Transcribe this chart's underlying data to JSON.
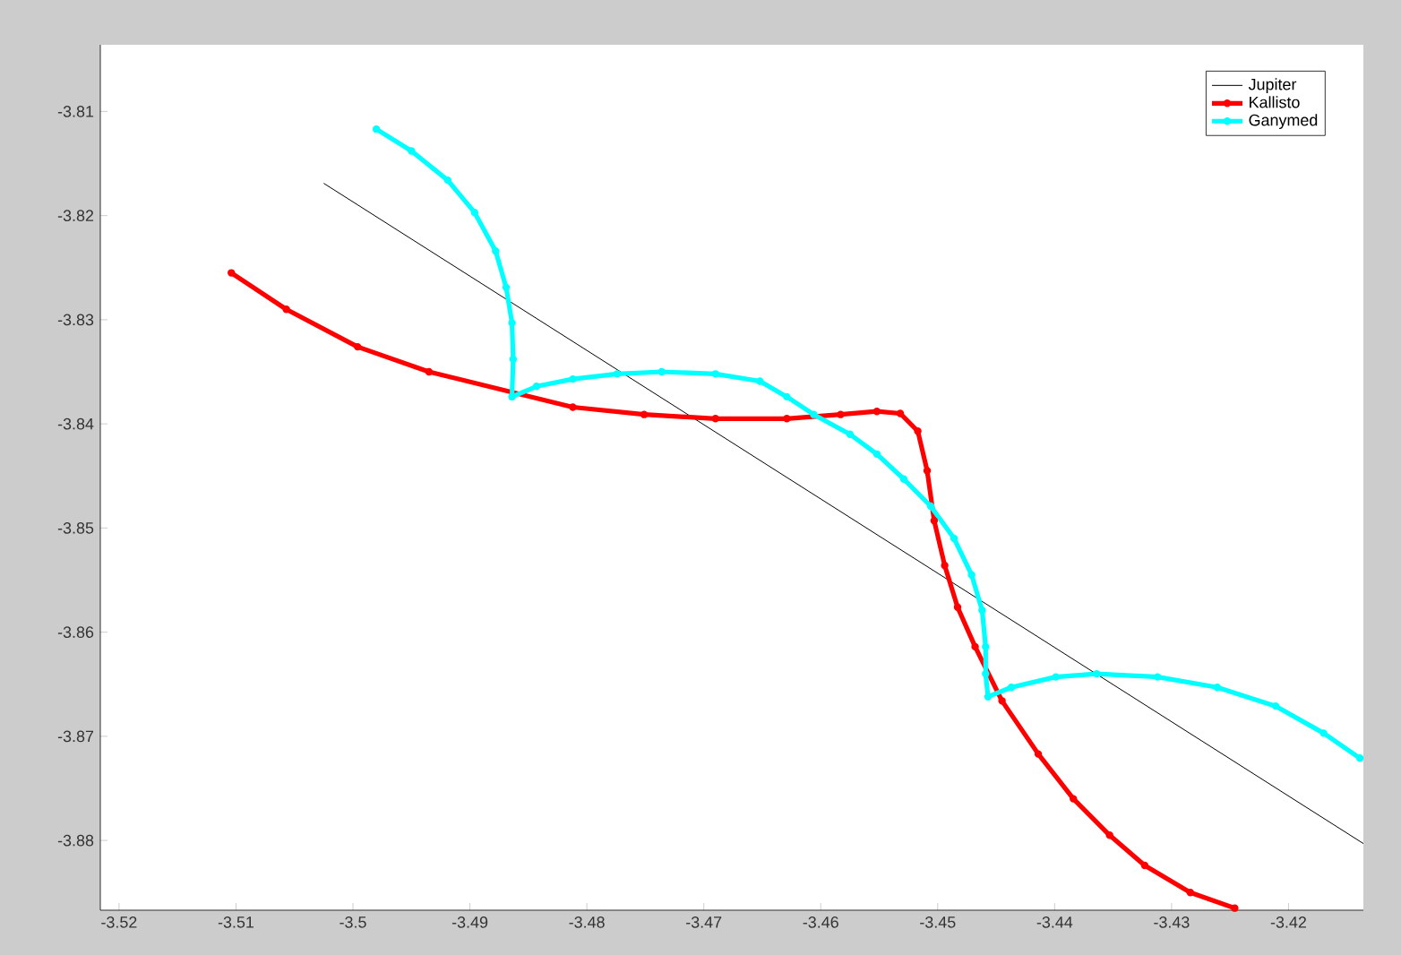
{
  "chart_data": {
    "type": "line",
    "xlim": [
      -3.5216,
      -3.4136
    ],
    "ylim": [
      -3.8867,
      -3.8036
    ],
    "xticks": [
      -3.52,
      -3.51,
      -3.5,
      -3.49,
      -3.48,
      -3.47,
      -3.46,
      -3.45,
      -3.44,
      -3.43,
      -3.42
    ],
    "yticks": [
      -3.88,
      -3.87,
      -3.86,
      -3.85,
      -3.84,
      -3.83,
      -3.82,
      -3.81
    ],
    "legend": "top right",
    "grid": false,
    "series": [
      {
        "name": "Jupiter",
        "color": "#000000",
        "x": [
          -3.5025,
          -3.4136
        ],
        "values": [
          -3.8169,
          -3.8803
        ]
      },
      {
        "name": "Kallisto",
        "color": "#ff0000",
        "marker": "circle",
        "x": [
          -3.5104,
          -3.5057,
          -3.4996,
          -3.4935,
          -3.4812,
          -3.4751,
          -3.469,
          -3.4629,
          -3.4583,
          -3.4552,
          -3.4532,
          -3.4517,
          -3.4509,
          -3.4503,
          -3.4494,
          -3.4483,
          -3.4468,
          -3.4445,
          -3.4414,
          -3.4384,
          -3.4353,
          -3.4323,
          -3.4284,
          -3.4246
        ],
        "values": [
          -3.8255,
          -3.829,
          -3.8326,
          -3.835,
          -3.8384,
          -3.8391,
          -3.8395,
          -3.8395,
          -3.8391,
          -3.8388,
          -3.839,
          -3.8407,
          -3.8445,
          -3.8493,
          -3.8536,
          -3.8576,
          -3.8614,
          -3.8666,
          -3.8717,
          -3.876,
          -3.8795,
          -3.8824,
          -3.885,
          -3.8865
        ]
      },
      {
        "name": "Ganymed",
        "color": "#00ffff",
        "marker": "circle",
        "x": [
          -3.498,
          -3.495,
          -3.4919,
          -3.4896,
          -3.4878,
          -3.4869,
          -3.4864,
          -3.4863,
          -3.4864,
          -3.4843,
          -3.4812,
          -3.4774,
          -3.4736,
          -3.469,
          -3.4652,
          -3.4629,
          -3.4606,
          -3.4575,
          -3.4552,
          -3.4529,
          -3.4506,
          -3.4486,
          -3.4471,
          -3.4462,
          -3.4459,
          -3.4459,
          -3.4457,
          -3.4437,
          -3.4399,
          -3.4364,
          -3.4312,
          -3.4261,
          -3.4211,
          -3.417,
          -3.4139
        ],
        "values": [
          -3.8117,
          -3.8138,
          -3.8166,
          -3.8197,
          -3.8234,
          -3.8269,
          -3.8303,
          -3.8338,
          -3.8374,
          -3.8364,
          -3.8357,
          -3.8352,
          -3.835,
          -3.8352,
          -3.8359,
          -3.8374,
          -3.8391,
          -3.841,
          -3.8429,
          -3.8453,
          -3.8479,
          -3.851,
          -3.8545,
          -3.8579,
          -3.8614,
          -3.864,
          -3.8662,
          -3.8653,
          -3.8643,
          -3.864,
          -3.8643,
          -3.8653,
          -3.8671,
          -3.8697,
          -3.8721
        ]
      }
    ]
  }
}
